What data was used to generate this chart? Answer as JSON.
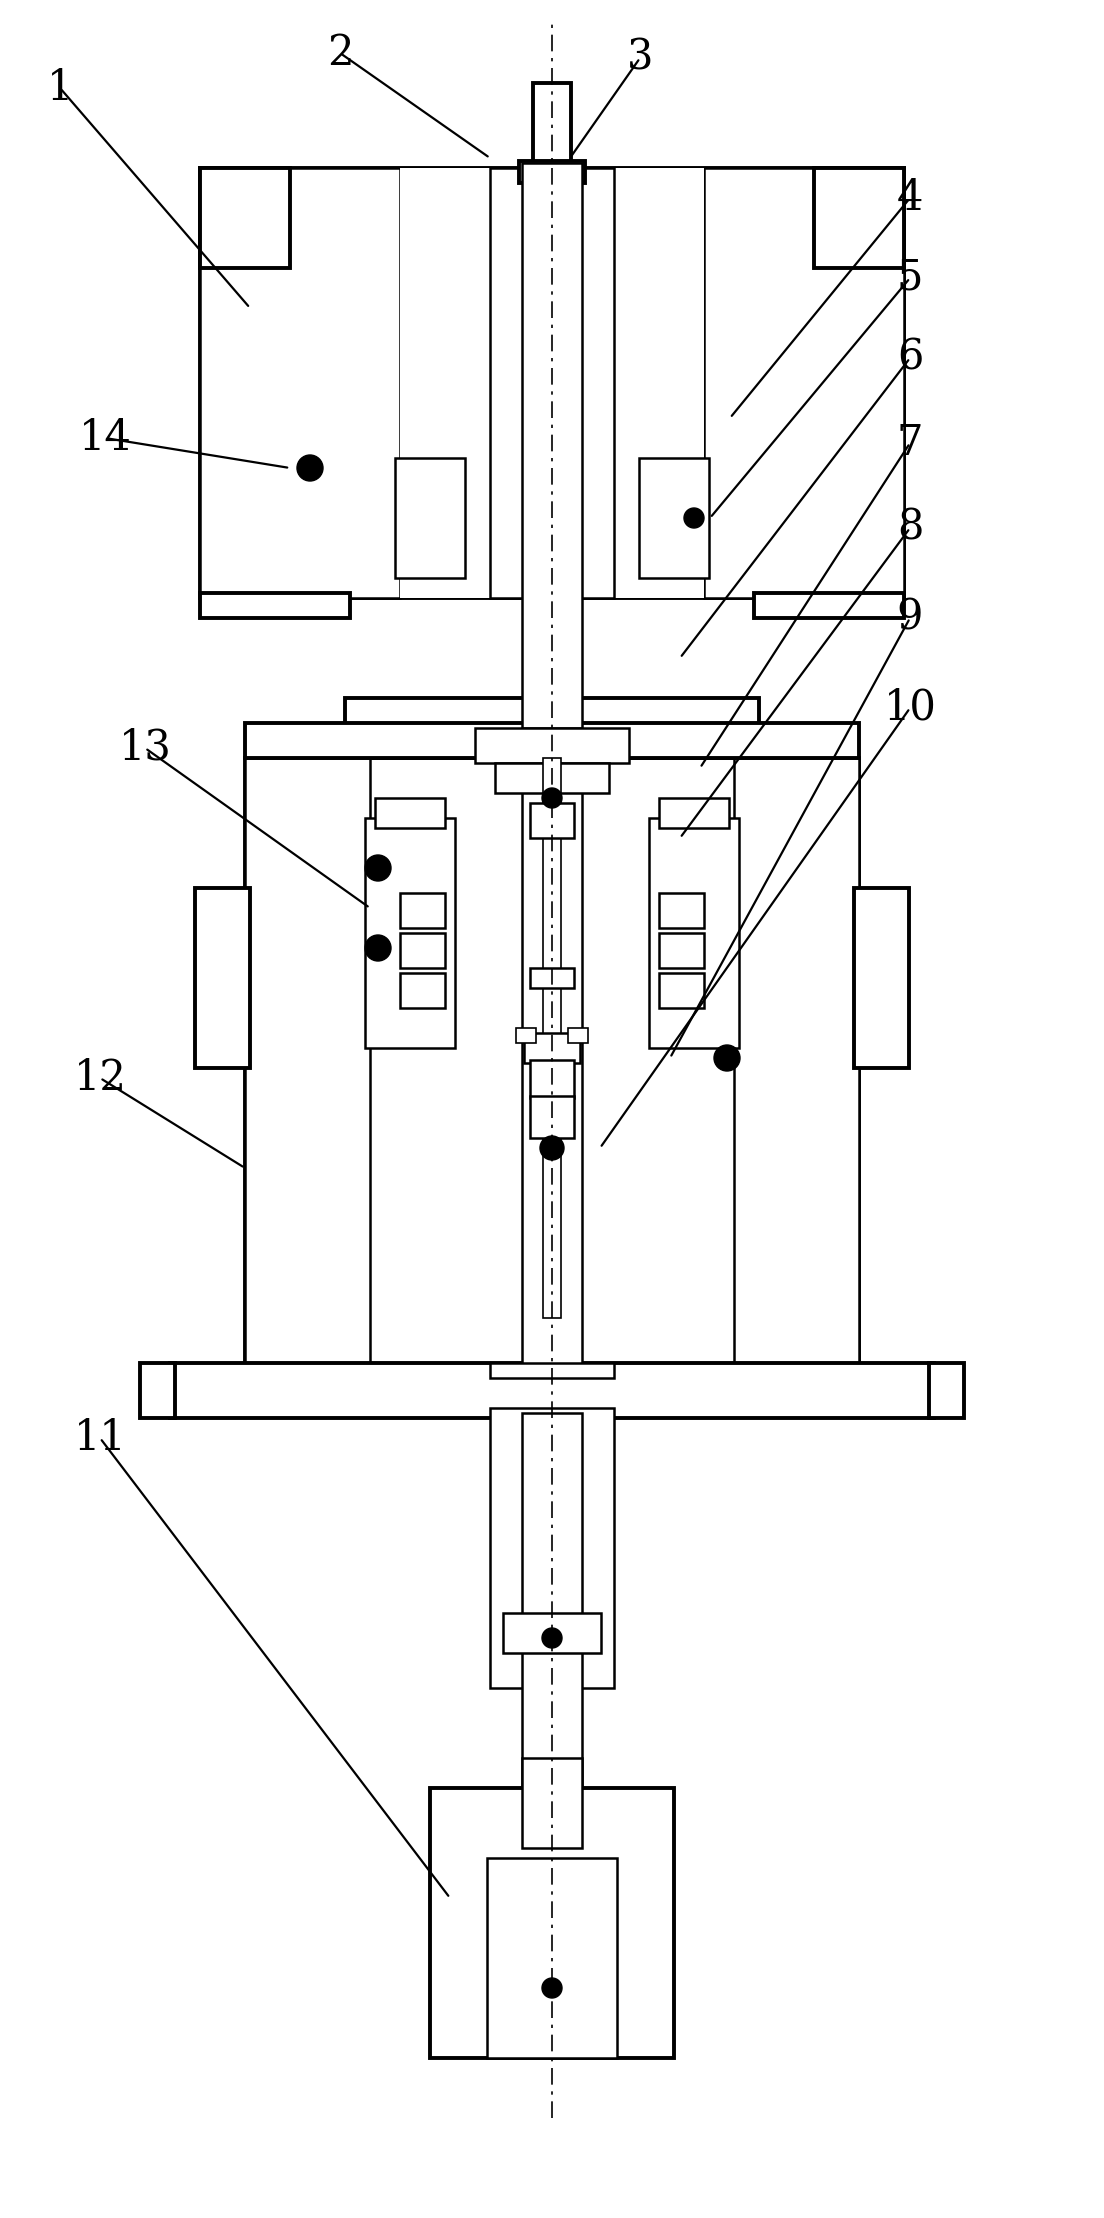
{
  "background_color": "#ffffff",
  "line_color": "#000000",
  "fig_width": 11.04,
  "fig_height": 22.18,
  "annots": [
    [
      "1",
      60,
      2130,
      250,
      1910
    ],
    [
      "2",
      340,
      2165,
      490,
      2060
    ],
    [
      "3",
      640,
      2160,
      570,
      2060
    ],
    [
      "4",
      910,
      2020,
      730,
      1800
    ],
    [
      "5",
      910,
      1940,
      710,
      1700
    ],
    [
      "6",
      910,
      1860,
      680,
      1560
    ],
    [
      "7",
      910,
      1775,
      700,
      1450
    ],
    [
      "8",
      910,
      1690,
      680,
      1380
    ],
    [
      "9",
      910,
      1600,
      670,
      1160
    ],
    [
      "10",
      910,
      1510,
      600,
      1070
    ],
    [
      "11",
      100,
      780,
      450,
      320
    ],
    [
      "12",
      100,
      1140,
      245,
      1050
    ],
    [
      "13",
      145,
      1470,
      370,
      1310
    ],
    [
      "14",
      105,
      1780,
      290,
      1750
    ]
  ]
}
